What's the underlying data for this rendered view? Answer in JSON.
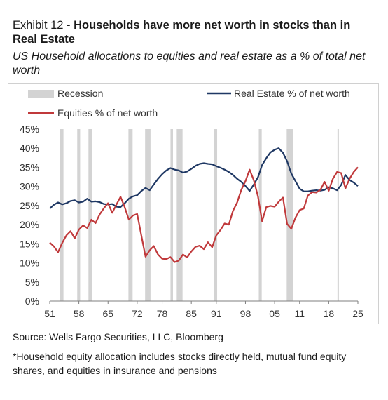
{
  "header": {
    "exhibit": "Exhibit 12 - ",
    "title": "Households have more net worth in stocks than in Real Estate",
    "subtitle": "US Household allocations to equities and real estate as a % of total net worth"
  },
  "source": "Source: Wells Fargo Securities, LLC, Bloomberg",
  "footnote": "*Household equity allocation includes stocks directly held, mutual fund equity shares, and equities in insurance and pensions",
  "chart_data": {
    "type": "line",
    "legend": [
      {
        "name": "Recession",
        "kind": "band",
        "color": "#d3d3d3"
      },
      {
        "name": "Real Estate % of net worth",
        "kind": "line",
        "color": "#1f3864"
      },
      {
        "name": "Equities % of net worth",
        "kind": "line",
        "color": "#c0393b"
      }
    ],
    "legend_position": "top",
    "x_ticks": [
      "51",
      "58",
      "65",
      "72",
      "78",
      "85",
      "91",
      "98",
      "05",
      "11",
      "18",
      "25"
    ],
    "x_tick_values": [
      1951,
      1958,
      1965,
      1972,
      1978,
      1985,
      1991,
      1998,
      2005,
      2011,
      2018,
      2025
    ],
    "xlim": [
      1951,
      2025
    ],
    "y_ticks": [
      "45%",
      "40%",
      "35%",
      "30%",
      "25%",
      "20%",
      "15%",
      "10%",
      "5%",
      "0%"
    ],
    "y_tick_values": [
      45,
      40,
      35,
      30,
      25,
      20,
      15,
      10,
      5,
      0
    ],
    "ylim": [
      0,
      45
    ],
    "grid": false,
    "recessions": [
      [
        1953.5,
        1954.3
      ],
      [
        1957.6,
        1958.3
      ],
      [
        1960.3,
        1961.1
      ],
      [
        1969.9,
        1970.9
      ],
      [
        1973.9,
        1975.2
      ],
      [
        1980.0,
        1980.6
      ],
      [
        1981.5,
        1982.9
      ],
      [
        1990.5,
        1991.2
      ],
      [
        2001.2,
        2001.9
      ],
      [
        2007.9,
        2009.5
      ],
      [
        2020.1,
        2020.4
      ]
    ],
    "series": [
      {
        "name": "Real Estate % of net worth",
        "color": "#1f3864",
        "points": [
          [
            1951,
            24.2
          ],
          [
            1952,
            25.2
          ],
          [
            1953,
            25.8
          ],
          [
            1954,
            25.3
          ],
          [
            1955,
            25.6
          ],
          [
            1956,
            26.2
          ],
          [
            1957,
            26.4
          ],
          [
            1958,
            25.8
          ],
          [
            1959,
            26.0
          ],
          [
            1960,
            26.8
          ],
          [
            1961,
            26.0
          ],
          [
            1962,
            26.1
          ],
          [
            1963,
            25.9
          ],
          [
            1964,
            25.4
          ],
          [
            1965,
            25.3
          ],
          [
            1966,
            25.4
          ],
          [
            1967,
            24.7
          ],
          [
            1968,
            24.6
          ],
          [
            1969,
            25.6
          ],
          [
            1970,
            26.8
          ],
          [
            1971,
            27.4
          ],
          [
            1972,
            27.7
          ],
          [
            1973,
            28.8
          ],
          [
            1974,
            29.6
          ],
          [
            1975,
            29.0
          ],
          [
            1976,
            30.5
          ],
          [
            1977,
            32.0
          ],
          [
            1978,
            33.2
          ],
          [
            1979,
            34.2
          ],
          [
            1980,
            34.8
          ],
          [
            1981,
            34.4
          ],
          [
            1982,
            34.2
          ],
          [
            1983,
            33.6
          ],
          [
            1984,
            33.9
          ],
          [
            1985,
            34.6
          ],
          [
            1986,
            35.4
          ],
          [
            1987,
            35.9
          ],
          [
            1988,
            36.1
          ],
          [
            1989,
            35.9
          ],
          [
            1990,
            35.8
          ],
          [
            1991,
            35.3
          ],
          [
            1992,
            34.9
          ],
          [
            1993,
            34.4
          ],
          [
            1994,
            33.8
          ],
          [
            1995,
            33.0
          ],
          [
            1996,
            32.0
          ],
          [
            1997,
            31.2
          ],
          [
            1998,
            30.1
          ],
          [
            1999,
            28.8
          ],
          [
            2000,
            30.5
          ],
          [
            2001,
            32.4
          ],
          [
            2002,
            35.6
          ],
          [
            2003,
            37.4
          ],
          [
            2004,
            38.9
          ],
          [
            2005,
            39.6
          ],
          [
            2006,
            40.0
          ],
          [
            2007,
            38.8
          ],
          [
            2008,
            36.6
          ],
          [
            2009,
            33.4
          ],
          [
            2010,
            31.4
          ],
          [
            2011,
            29.4
          ],
          [
            2012,
            28.7
          ],
          [
            2013,
            28.7
          ],
          [
            2014,
            28.9
          ],
          [
            2015,
            29.0
          ],
          [
            2016,
            28.9
          ],
          [
            2017,
            29.1
          ],
          [
            2018,
            29.8
          ],
          [
            2019,
            29.5
          ],
          [
            2020,
            29.0
          ],
          [
            2021,
            30.4
          ],
          [
            2022,
            33.0
          ],
          [
            2023,
            31.7
          ],
          [
            2024,
            31.0
          ],
          [
            2025,
            30.1
          ]
        ]
      },
      {
        "name": "Equities % of net worth",
        "color": "#c0393b",
        "points": [
          [
            1951,
            15.3
          ],
          [
            1952,
            14.3
          ],
          [
            1953,
            12.8
          ],
          [
            1954,
            15.2
          ],
          [
            1955,
            17.2
          ],
          [
            1956,
            18.3
          ],
          [
            1957,
            16.4
          ],
          [
            1958,
            18.7
          ],
          [
            1959,
            19.8
          ],
          [
            1960,
            19.1
          ],
          [
            1961,
            21.3
          ],
          [
            1962,
            20.4
          ],
          [
            1963,
            22.7
          ],
          [
            1964,
            24.3
          ],
          [
            1965,
            25.6
          ],
          [
            1966,
            23.1
          ],
          [
            1967,
            25.2
          ],
          [
            1968,
            27.3
          ],
          [
            1969,
            24.6
          ],
          [
            1970,
            21.3
          ],
          [
            1971,
            22.4
          ],
          [
            1972,
            22.8
          ],
          [
            1973,
            17.2
          ],
          [
            1974,
            11.6
          ],
          [
            1975,
            13.3
          ],
          [
            1976,
            14.4
          ],
          [
            1977,
            12.2
          ],
          [
            1978,
            11.1
          ],
          [
            1979,
            11.0
          ],
          [
            1980,
            11.5
          ],
          [
            1981,
            10.2
          ],
          [
            1982,
            10.6
          ],
          [
            1983,
            12.2
          ],
          [
            1984,
            11.4
          ],
          [
            1985,
            13.0
          ],
          [
            1986,
            14.2
          ],
          [
            1987,
            14.5
          ],
          [
            1988,
            13.6
          ],
          [
            1989,
            15.4
          ],
          [
            1990,
            14.1
          ],
          [
            1991,
            17.2
          ],
          [
            1992,
            18.6
          ],
          [
            1993,
            20.3
          ],
          [
            1994,
            20.0
          ],
          [
            1995,
            23.6
          ],
          [
            1996,
            25.8
          ],
          [
            1997,
            29.1
          ],
          [
            1998,
            31.4
          ],
          [
            1999,
            34.4
          ],
          [
            2000,
            31.6
          ],
          [
            2001,
            27.4
          ],
          [
            2002,
            20.9
          ],
          [
            2003,
            24.6
          ],
          [
            2004,
            24.9
          ],
          [
            2005,
            24.7
          ],
          [
            2006,
            26.0
          ],
          [
            2007,
            27.1
          ],
          [
            2008,
            20.2
          ],
          [
            2009,
            18.9
          ],
          [
            2010,
            21.8
          ],
          [
            2011,
            23.8
          ],
          [
            2012,
            24.2
          ],
          [
            2013,
            27.6
          ],
          [
            2014,
            28.5
          ],
          [
            2015,
            28.4
          ],
          [
            2016,
            29.1
          ],
          [
            2017,
            31.2
          ],
          [
            2018,
            28.9
          ],
          [
            2019,
            32.0
          ],
          [
            2020,
            33.8
          ],
          [
            2021,
            33.5
          ],
          [
            2022,
            29.5
          ],
          [
            2023,
            32.0
          ],
          [
            2024,
            33.8
          ],
          [
            2025,
            35.0
          ]
        ]
      }
    ]
  }
}
